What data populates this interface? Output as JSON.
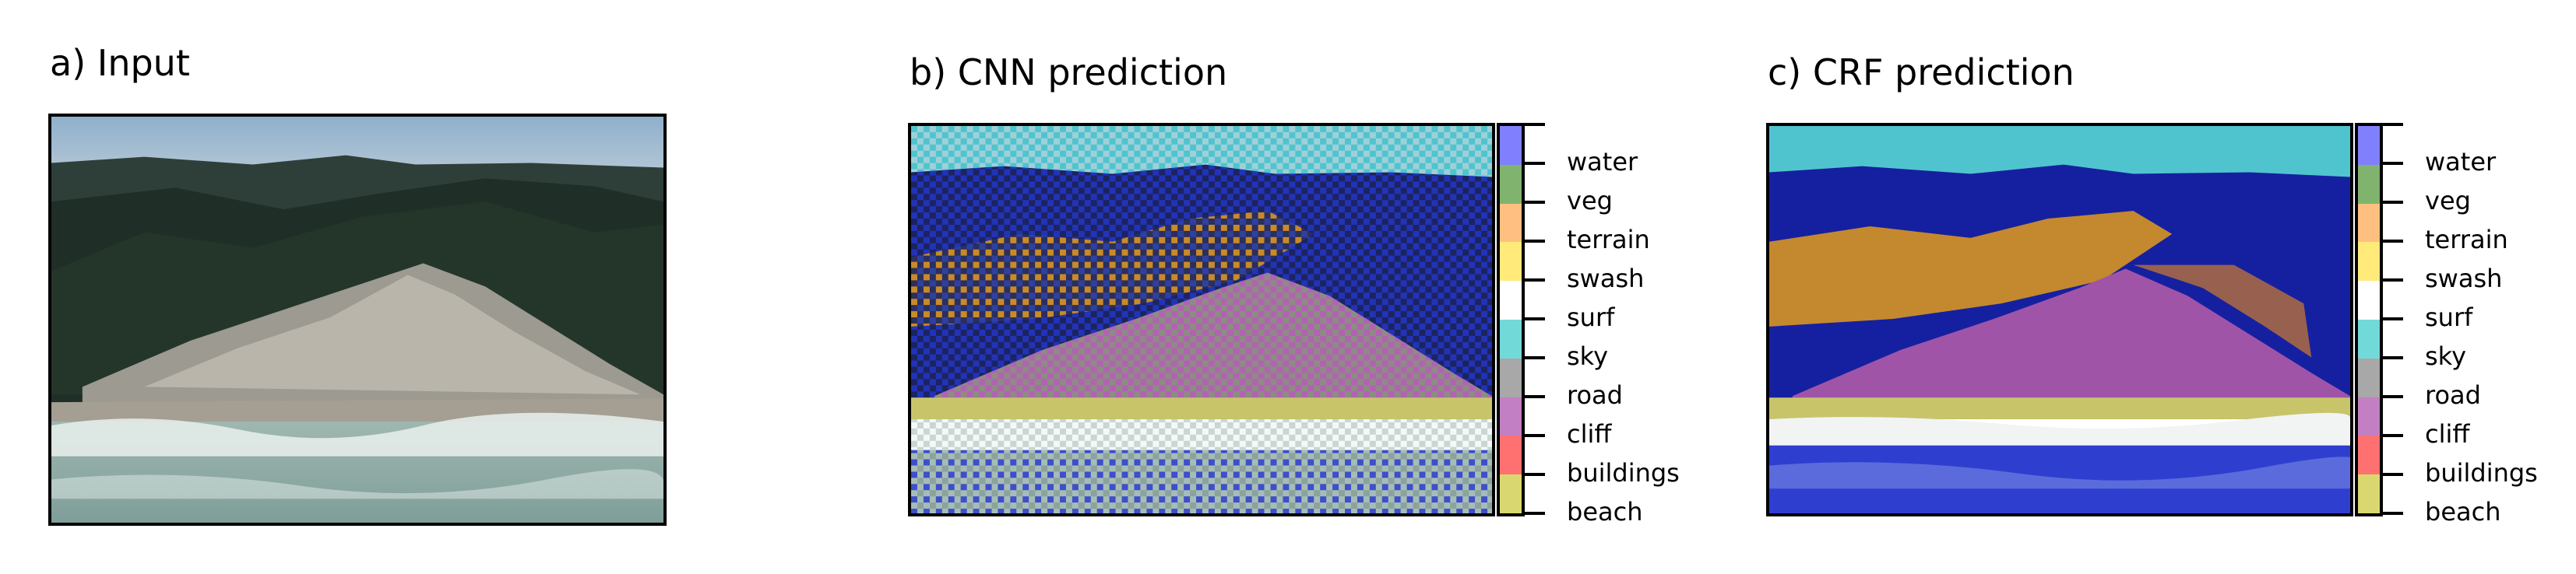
{
  "panels": {
    "input": {
      "title": "a) Input"
    },
    "cnn": {
      "title": "b) CNN prediction"
    },
    "crf": {
      "title": "c) CRF prediction"
    }
  },
  "classes": [
    {
      "name": "water",
      "color": "#8080ff"
    },
    {
      "name": "veg",
      "color": "#7fb36e"
    },
    {
      "name": "terrain",
      "color": "#ffbf80"
    },
    {
      "name": "swash",
      "color": "#ffea7a"
    },
    {
      "name": "surf",
      "color": "#ffffff"
    },
    {
      "name": "sky",
      "color": "#72d9d9"
    },
    {
      "name": "road",
      "color": "#a8a8a8"
    },
    {
      "name": "cliff",
      "color": "#c37fc3"
    },
    {
      "name": "buildings",
      "color": "#ff7070"
    },
    {
      "name": "beach",
      "color": "#d9d870"
    }
  ]
}
